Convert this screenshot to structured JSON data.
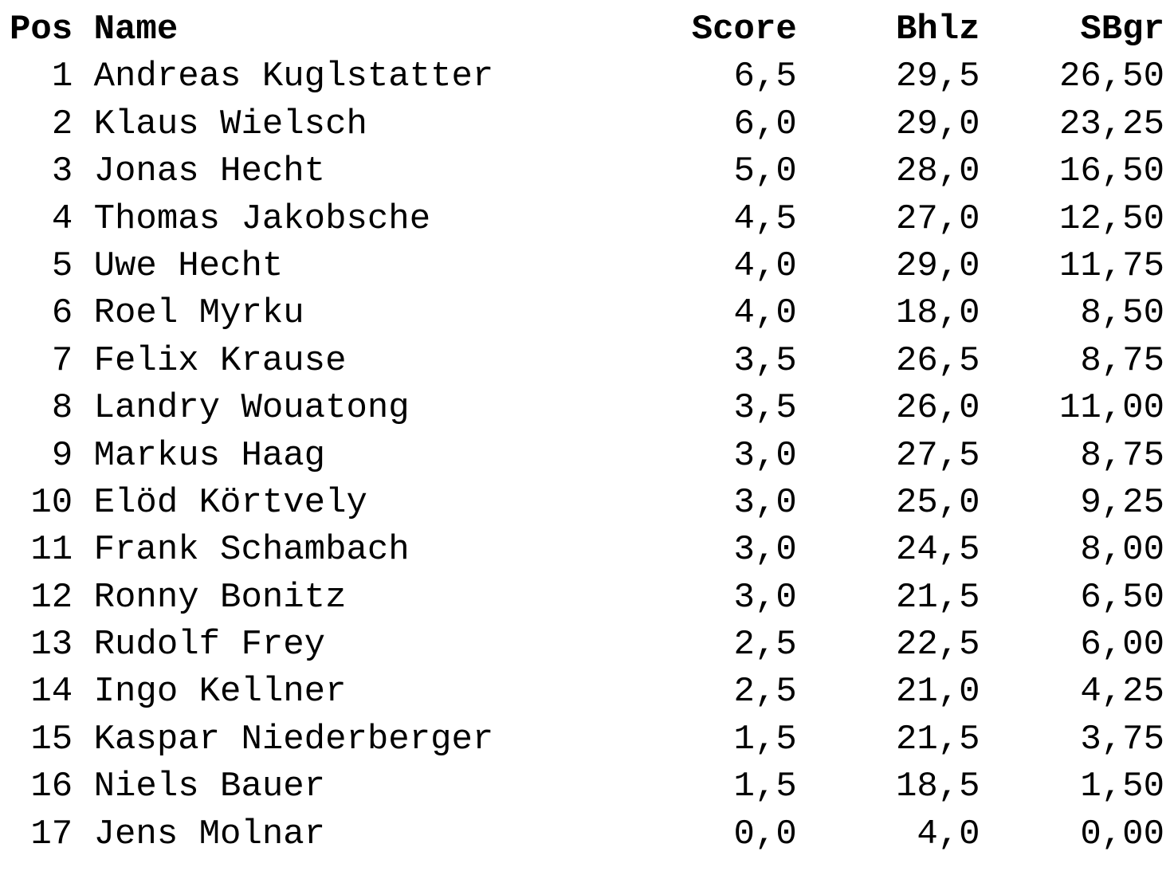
{
  "table": {
    "type": "table",
    "background_color": "#ffffff",
    "text_color": "#000000",
    "font_family": "Courier New",
    "font_size_pt": 33,
    "columns": [
      {
        "key": "pos",
        "label": "Pos",
        "align": "right",
        "width_ch": 3
      },
      {
        "key": "name",
        "label": "Name",
        "align": "left",
        "width_ch": 23
      },
      {
        "key": "score",
        "label": "Score",
        "align": "right",
        "width_ch": 11
      },
      {
        "key": "bhlz",
        "label": "Bhlz",
        "align": "right",
        "width_ch": 9
      },
      {
        "key": "sbgr",
        "label": "SBgr",
        "align": "right",
        "width_ch": 9
      }
    ],
    "rows": [
      {
        "pos": "1",
        "name": "Andreas Kuglstatter",
        "score": "6,5",
        "bhlz": "29,5",
        "sbgr": "26,50"
      },
      {
        "pos": "2",
        "name": "Klaus Wielsch",
        "score": "6,0",
        "bhlz": "29,0",
        "sbgr": "23,25"
      },
      {
        "pos": "3",
        "name": "Jonas Hecht",
        "score": "5,0",
        "bhlz": "28,0",
        "sbgr": "16,50"
      },
      {
        "pos": "4",
        "name": "Thomas Jakobsche",
        "score": "4,5",
        "bhlz": "27,0",
        "sbgr": "12,50"
      },
      {
        "pos": "5",
        "name": "Uwe Hecht",
        "score": "4,0",
        "bhlz": "29,0",
        "sbgr": "11,75"
      },
      {
        "pos": "6",
        "name": "Roel Myrku",
        "score": "4,0",
        "bhlz": "18,0",
        "sbgr": "8,50"
      },
      {
        "pos": "7",
        "name": "Felix Krause",
        "score": "3,5",
        "bhlz": "26,5",
        "sbgr": "8,75"
      },
      {
        "pos": "8",
        "name": "Landry Wouatong",
        "score": "3,5",
        "bhlz": "26,0",
        "sbgr": "11,00"
      },
      {
        "pos": "9",
        "name": "Markus Haag",
        "score": "3,0",
        "bhlz": "27,5",
        "sbgr": "8,75"
      },
      {
        "pos": "10",
        "name": "Elöd Körtvely",
        "score": "3,0",
        "bhlz": "25,0",
        "sbgr": "9,25"
      },
      {
        "pos": "11",
        "name": "Frank Schambach",
        "score": "3,0",
        "bhlz": "24,5",
        "sbgr": "8,00"
      },
      {
        "pos": "12",
        "name": "Ronny Bonitz",
        "score": "3,0",
        "bhlz": "21,5",
        "sbgr": "6,50"
      },
      {
        "pos": "13",
        "name": "Rudolf Frey",
        "score": "2,5",
        "bhlz": "22,5",
        "sbgr": "6,00"
      },
      {
        "pos": "14",
        "name": "Ingo Kellner",
        "score": "2,5",
        "bhlz": "21,0",
        "sbgr": "4,25"
      },
      {
        "pos": "15",
        "name": "Kaspar Niederberger",
        "score": "1,5",
        "bhlz": "21,5",
        "sbgr": "3,75"
      },
      {
        "pos": "16",
        "name": "Niels Bauer",
        "score": "1,5",
        "bhlz": "18,5",
        "sbgr": "1,50"
      },
      {
        "pos": "17",
        "name": "Jens Molnar",
        "score": "0,0",
        "bhlz": "4,0",
        "sbgr": "0,00"
      }
    ]
  }
}
